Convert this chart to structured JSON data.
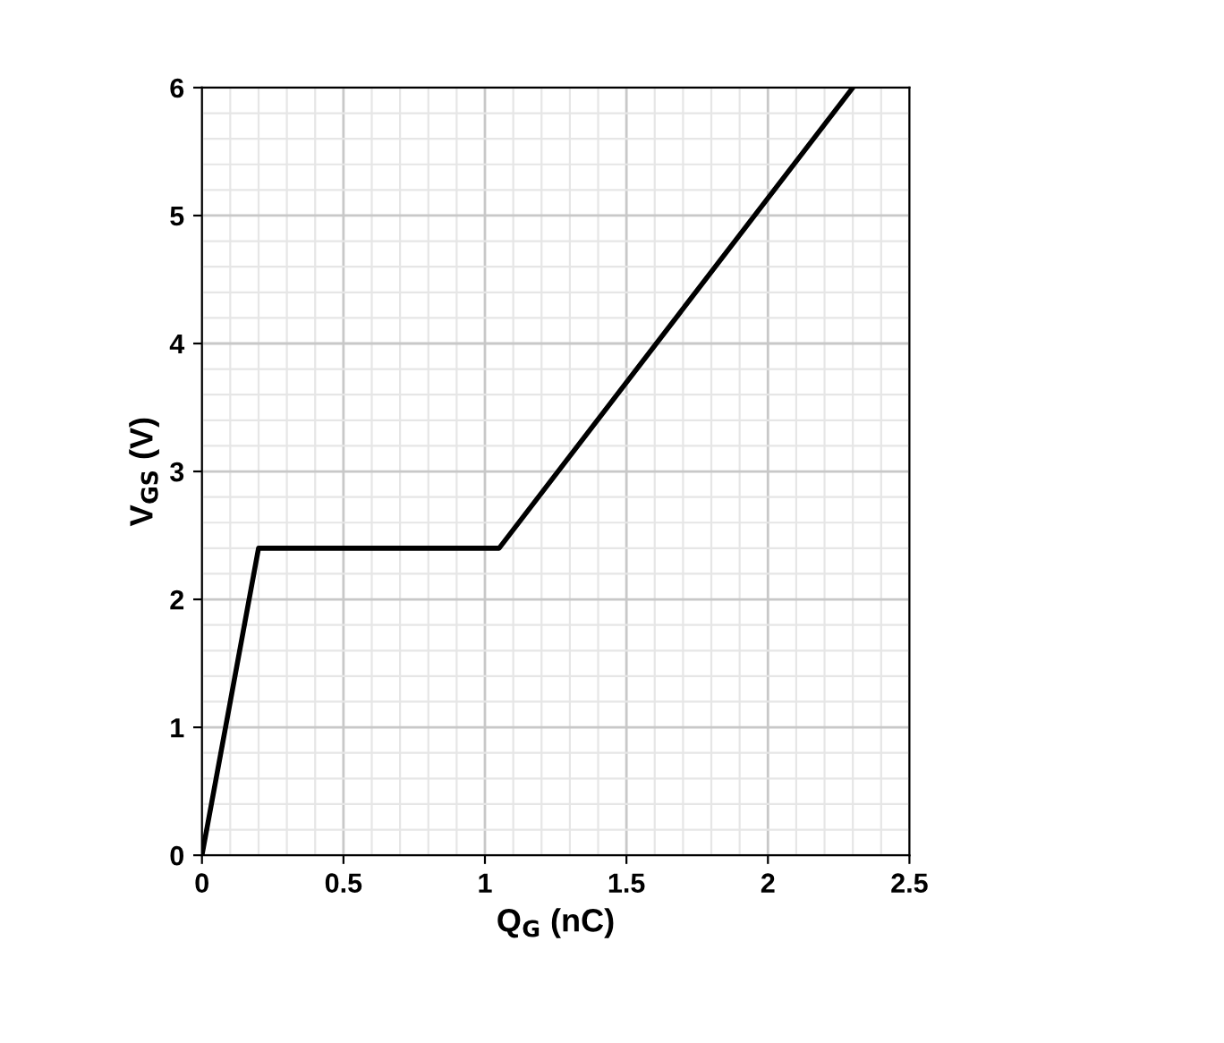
{
  "chart_data": {
    "type": "line",
    "xlabel": "Q$_{G}$ (nC)",
    "ylabel": "V$_{GS}$ (V)",
    "series": [
      {
        "color": "#000000",
        "x": [
          0,
          0.2,
          1.05,
          2.3
        ],
        "values": [
          0,
          2.4,
          2.4,
          6
        ]
      }
    ],
    "xlim": [
      0,
      2.5
    ],
    "ylim": [
      0,
      6
    ],
    "xticks": [
      0,
      0.5,
      1,
      1.5,
      2,
      2.5
    ],
    "yticks": [
      0,
      1,
      2,
      3,
      4,
      5,
      6
    ],
    "grid": true,
    "marker": "none",
    "line_style": "solid"
  }
}
